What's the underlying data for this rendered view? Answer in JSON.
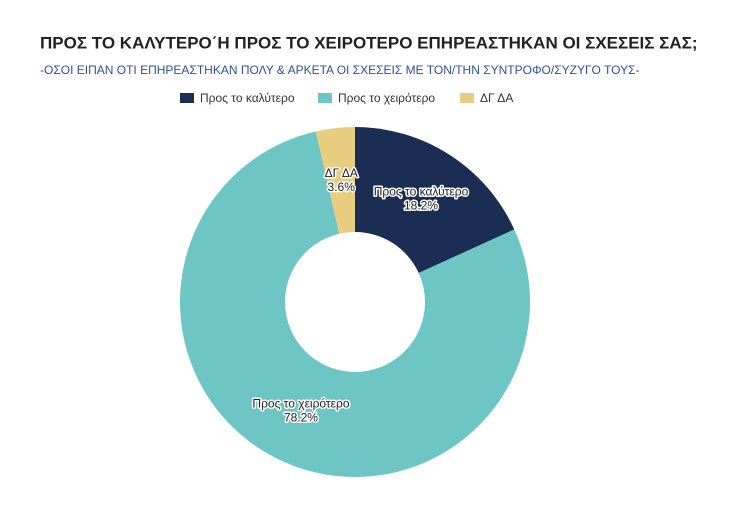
{
  "chart_data": {
    "type": "pie",
    "donut": true,
    "title": "ΠΡΟΣ ΤΟ ΚΑΛΥΤΕΡΟ΄Η ΠΡΟΣ ΤΟ ΧΕΙΡΟΤΕΡΟ ΕΠΗΡΕΑΣΤΗΚΑΝ ΟΙ ΣΧΕΣΕΙΣ ΣΑΣ;",
    "subtitle": "-ΟΣΟΙ ΕΙΠΑΝ ΟΤΙ ΕΠΗΡΕΑΣΤΗΚΑΝ ΠΟΛΥ & ΑΡΚΕΤΑ ΟΙ ΣΧΕΣΕΙΣ ΜΕ ΤΟΝ/ΤΗΝ ΣΥΝΤΡΟΦΟ/ΣΥΖΥΓΟ ΤΟΥΣ-",
    "categories": [
      "Προς το καλύτερο",
      "Προς το χειρότερο",
      "ΔΓ ΔΑ"
    ],
    "values": [
      18.2,
      78.2,
      3.6
    ],
    "value_labels": [
      "18.2%",
      "78.2%",
      "3.6%"
    ],
    "colors": [
      "#1b2d52",
      "#6dc6c4",
      "#e8cd80"
    ],
    "legend": "top"
  }
}
